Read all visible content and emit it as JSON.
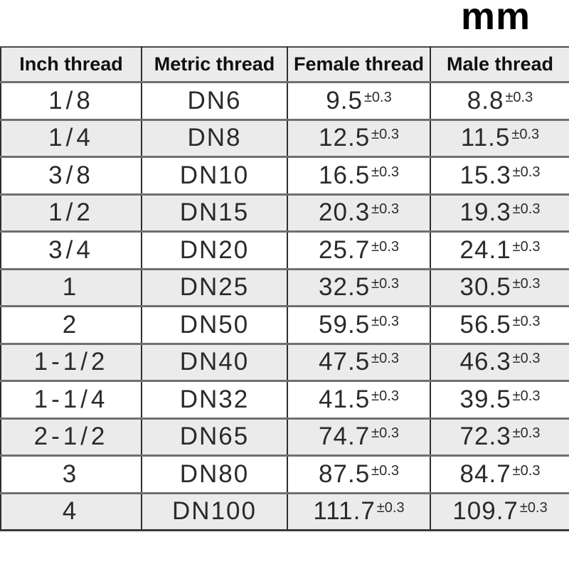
{
  "unit_label": "mm",
  "colors": {
    "page_bg": "#ffffff",
    "header_bg": "#ebebeb",
    "row_alt_bg": "#ebebeb",
    "vertical_border": "#2e2e2e",
    "horizontal_border": "#6f6f6f",
    "text": "#2a2a2a"
  },
  "table": {
    "columns": [
      "Inch thread",
      "Metric thread",
      "Female thread",
      "Male thread"
    ],
    "tolerance": "±0.3",
    "rows": [
      {
        "inch": "1/8",
        "metric": "DN6",
        "female": "9.5",
        "male": "8.8"
      },
      {
        "inch": "1/4",
        "metric": "DN8",
        "female": "12.5",
        "male": "11.5"
      },
      {
        "inch": "3/8",
        "metric": "DN10",
        "female": "16.5",
        "male": "15.3"
      },
      {
        "inch": "1/2",
        "metric": "DN15",
        "female": "20.3",
        "male": "19.3"
      },
      {
        "inch": "3/4",
        "metric": "DN20",
        "female": "25.7",
        "male": "24.1"
      },
      {
        "inch": "1",
        "metric": "DN25",
        "female": "32.5",
        "male": "30.5"
      },
      {
        "inch": "2",
        "metric": "DN50",
        "female": "59.5",
        "male": "56.5"
      },
      {
        "inch": "1-1/2",
        "metric": "DN40",
        "female": "47.5",
        "male": "46.3"
      },
      {
        "inch": "1-1/4",
        "metric": "DN32",
        "female": "41.5",
        "male": "39.5"
      },
      {
        "inch": "2-1/2",
        "metric": "DN65",
        "female": "74.7",
        "male": "72.3"
      },
      {
        "inch": "3",
        "metric": "DN80",
        "female": "87.5",
        "male": "84.7"
      },
      {
        "inch": "4",
        "metric": "DN100",
        "female": "111.7",
        "male": "109.7"
      }
    ]
  }
}
